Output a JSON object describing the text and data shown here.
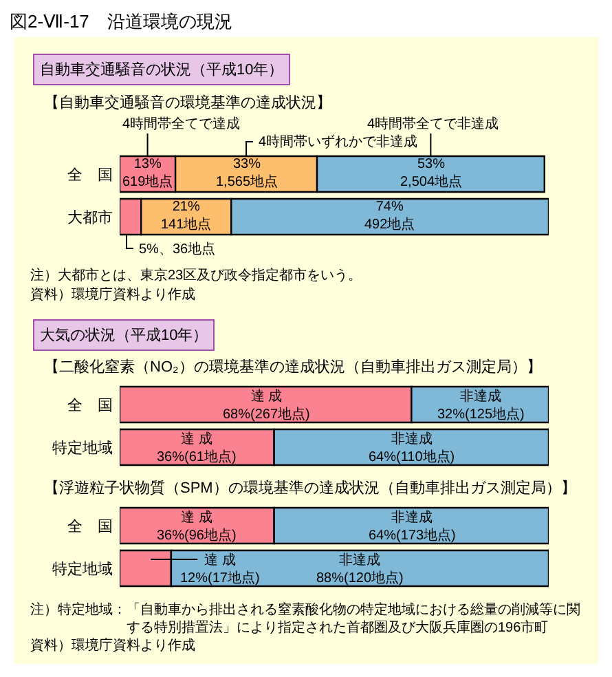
{
  "chart_data": [
    {
      "type": "bar",
      "orientation": "horizontal",
      "stacked": true,
      "legend": "top",
      "tick_labels": "y",
      "subtitle": "自動車交通騒音の状況（平成10年）",
      "title": "【自動車交通騒音の環境基準の達成状況】",
      "categories": [
        "全　国",
        "大都市"
      ],
      "series": [
        {
          "name": "4時間帯全てで達成",
          "color": "#fa8291",
          "values": [
            13,
            5
          ],
          "value_labels": [
            "13%\n619地点",
            "5%、36地点"
          ]
        },
        {
          "name": "4時間帯いずれかで非達成",
          "color": "#fdbe6e",
          "values": [
            33,
            21
          ],
          "value_labels": [
            "33%\n1,565地点",
            "21%\n141地点"
          ]
        },
        {
          "name": "4時間帯全てで非達成",
          "color": "#80b9d7",
          "values": [
            53,
            74
          ],
          "value_labels": [
            "53%\n2,504地点",
            "74%\n492地点"
          ]
        }
      ],
      "annotations": [
        "図2-Ⅶ-17　沿道環境の現況",
        "注）大都市とは、東京23区及び政令指定都市をいう。",
        "資料）環境庁資料より作成"
      ]
    },
    {
      "type": "bar",
      "orientation": "horizontal",
      "stacked": true,
      "tick_labels": "y",
      "subtitle": "大気の状況（平成10年）",
      "title": "【二酸化窒素（NO₂）の環境基準の達成状況（自動車排出ガス測定局）】",
      "categories": [
        "全　国",
        "特定地域"
      ],
      "series": [
        {
          "name": "達 成",
          "color": "#fa8291",
          "values": [
            68,
            36
          ],
          "value_labels": [
            "68%(267地点)",
            "36%(61地点)"
          ]
        },
        {
          "name": "非達成",
          "color": "#80b9d7",
          "values": [
            32,
            64
          ],
          "value_labels": [
            "32%(125地点)",
            "64%(110地点)"
          ]
        }
      ]
    },
    {
      "type": "bar",
      "orientation": "horizontal",
      "stacked": true,
      "tick_labels": "y",
      "title": "【浮遊粒子状物質（SPM）の環境基準の達成状況（自動車排出ガス測定局）】",
      "categories": [
        "全　国",
        "特定地域"
      ],
      "series": [
        {
          "name": "達 成",
          "color": "#fa8291",
          "values": [
            36,
            12
          ],
          "value_labels": [
            "36%(96地点)",
            "12%(17地点)"
          ]
        },
        {
          "name": "非達成",
          "color": "#80b9d7",
          "values": [
            64,
            88
          ],
          "value_labels": [
            "64%(173地点)",
            "88%(120地点)"
          ]
        }
      ],
      "annotations": [
        "注）特定地域：「自動車から排出される窒素酸化物の特定地域における総量の削減等に関する特別措置法」により指定された首都圏及び大阪兵庫圏の196市町",
        "資料）環境庁資料より作成"
      ]
    }
  ]
}
